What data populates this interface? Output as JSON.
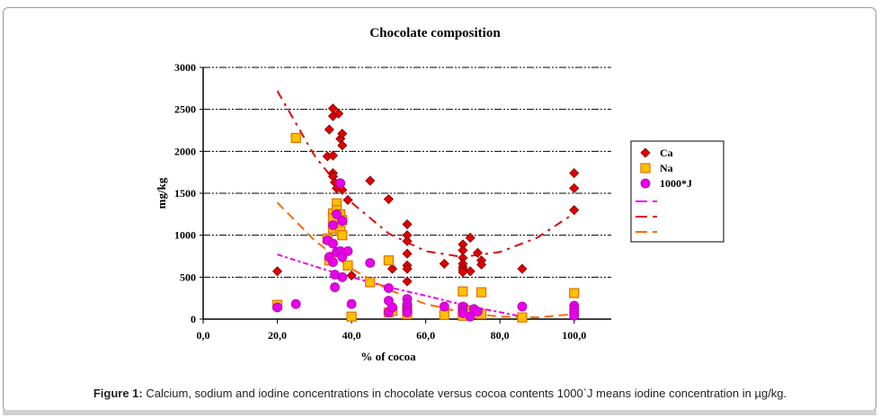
{
  "figure_caption": {
    "label": "Figure 1:",
    "text": "Calcium, sodium and iodine concentrations in chocolate versus cocoa contents 1000`J means iodine concentration in µg/kg."
  },
  "chart_data": {
    "type": "scatter",
    "title": "Chocolate composition",
    "xlabel": "% of cocoa",
    "ylabel": "mg/kg",
    "xlim": [
      0,
      110
    ],
    "ylim": [
      0,
      3000
    ],
    "x_ticks": [
      0,
      20,
      40,
      60,
      80,
      100
    ],
    "x_tick_labels": [
      "0,0",
      "20,0",
      "40,0",
      "60,0",
      "80,0",
      "100,0"
    ],
    "y_ticks": [
      0,
      500,
      1000,
      1500,
      2000,
      2500,
      3000
    ],
    "y_tick_labels": [
      "0",
      "500",
      "1000",
      "1500",
      "2000",
      "2500",
      "3000"
    ],
    "grid": "horizontal dash-dot",
    "legend_position": "right",
    "series": [
      {
        "name": "Ca",
        "marker": "diamond",
        "color": "#e00000",
        "points": [
          [
            20,
            570
          ],
          [
            34,
            2260
          ],
          [
            35,
            2510
          ],
          [
            35,
            2420
          ],
          [
            36.5,
            2450
          ],
          [
            37,
            2150
          ],
          [
            37.5,
            2210
          ],
          [
            37.5,
            2070
          ],
          [
            33.5,
            1940
          ],
          [
            35,
            1950
          ],
          [
            35,
            1740
          ],
          [
            35,
            1700
          ],
          [
            35.5,
            1630
          ],
          [
            36,
            1560
          ],
          [
            37,
            1620
          ],
          [
            37.5,
            1540
          ],
          [
            39,
            1420
          ],
          [
            45,
            1650
          ],
          [
            50,
            1430
          ],
          [
            40,
            520
          ],
          [
            51,
            600
          ],
          [
            55,
            1130
          ],
          [
            55,
            1000
          ],
          [
            55,
            930
          ],
          [
            55,
            780
          ],
          [
            55,
            640
          ],
          [
            55,
            600
          ],
          [
            55,
            450
          ],
          [
            65,
            660
          ],
          [
            70,
            890
          ],
          [
            70,
            820
          ],
          [
            70,
            730
          ],
          [
            70,
            660
          ],
          [
            70,
            620
          ],
          [
            70,
            590
          ],
          [
            70,
            560
          ],
          [
            72,
            970
          ],
          [
            72,
            570
          ],
          [
            74,
            790
          ],
          [
            75,
            700
          ],
          [
            75,
            650
          ],
          [
            86,
            600
          ],
          [
            100,
            1740
          ],
          [
            100,
            1560
          ],
          [
            100,
            1300
          ]
        ]
      },
      {
        "name": "Na",
        "marker": "square",
        "color": "#ffc000",
        "edge": "#e07000",
        "points": [
          [
            20,
            170
          ],
          [
            25,
            2160
          ],
          [
            33.5,
            960
          ],
          [
            34,
            700
          ],
          [
            35,
            1260
          ],
          [
            35,
            1200
          ],
          [
            35,
            1080
          ],
          [
            36,
            1380
          ],
          [
            36,
            1300
          ],
          [
            37,
            1250
          ],
          [
            37,
            1050
          ],
          [
            37.5,
            1180
          ],
          [
            37.5,
            1000
          ],
          [
            39,
            640
          ],
          [
            40,
            30
          ],
          [
            45,
            440
          ],
          [
            50,
            700
          ],
          [
            50,
            80
          ],
          [
            51,
            100
          ],
          [
            55,
            120
          ],
          [
            55,
            60
          ],
          [
            65,
            50
          ],
          [
            70,
            330
          ],
          [
            70,
            130
          ],
          [
            70,
            40
          ],
          [
            72,
            100
          ],
          [
            75,
            320
          ],
          [
            75,
            60
          ],
          [
            86,
            20
          ],
          [
            100,
            310
          ]
        ]
      },
      {
        "name": "1000*J",
        "marker": "circle",
        "color": "#e800e8",
        "edge": "#b000b0",
        "points": [
          [
            20,
            140
          ],
          [
            25,
            180
          ],
          [
            33.5,
            940
          ],
          [
            34,
            740
          ],
          [
            35,
            1120
          ],
          [
            35,
            900
          ],
          [
            35,
            680
          ],
          [
            35.5,
            530
          ],
          [
            35.5,
            380
          ],
          [
            36,
            1250
          ],
          [
            36,
            800
          ],
          [
            37,
            1620
          ],
          [
            37,
            810
          ],
          [
            37.5,
            1170
          ],
          [
            37.5,
            740
          ],
          [
            37.5,
            500
          ],
          [
            39,
            810
          ],
          [
            40,
            180
          ],
          [
            45,
            670
          ],
          [
            50,
            370
          ],
          [
            50,
            220
          ],
          [
            50,
            80
          ],
          [
            51,
            140
          ],
          [
            55,
            240
          ],
          [
            55,
            180
          ],
          [
            55,
            140
          ],
          [
            55,
            100
          ],
          [
            55,
            80
          ],
          [
            65,
            150
          ],
          [
            70,
            150
          ],
          [
            70,
            110
          ],
          [
            70,
            70
          ],
          [
            72,
            30
          ],
          [
            73,
            120
          ],
          [
            74,
            90
          ],
          [
            86,
            150
          ],
          [
            100,
            160
          ],
          [
            100,
            120
          ],
          [
            100,
            80
          ],
          [
            100,
            40
          ]
        ]
      }
    ],
    "trendlines": [
      {
        "name": "J trend",
        "color": "#ee00ee",
        "type": "linear",
        "points": [
          [
            20,
            770
          ],
          [
            35,
            560
          ],
          [
            50,
            380
          ],
          [
            60,
            280
          ],
          [
            70,
            170
          ],
          [
            86,
            30
          ]
        ]
      },
      {
        "name": "Ca trend",
        "color": "#e00000",
        "type": "polynomial",
        "points": [
          [
            20,
            2720
          ],
          [
            30,
            1950
          ],
          [
            40,
            1390
          ],
          [
            50,
            1020
          ],
          [
            60,
            810
          ],
          [
            70,
            740
          ],
          [
            80,
            800
          ],
          [
            90,
            970
          ],
          [
            100,
            1260
          ]
        ]
      },
      {
        "name": "Na trend",
        "color": "#ff6a00",
        "type": "polynomial",
        "points": [
          [
            20,
            1390
          ],
          [
            30,
            940
          ],
          [
            40,
            600
          ],
          [
            50,
            350
          ],
          [
            60,
            180
          ],
          [
            70,
            80
          ],
          [
            80,
            30
          ],
          [
            90,
            20
          ],
          [
            100,
            60
          ]
        ]
      }
    ],
    "legend_entries": [
      "Ca",
      "Na",
      "1000*J",
      "",
      "",
      ""
    ]
  }
}
